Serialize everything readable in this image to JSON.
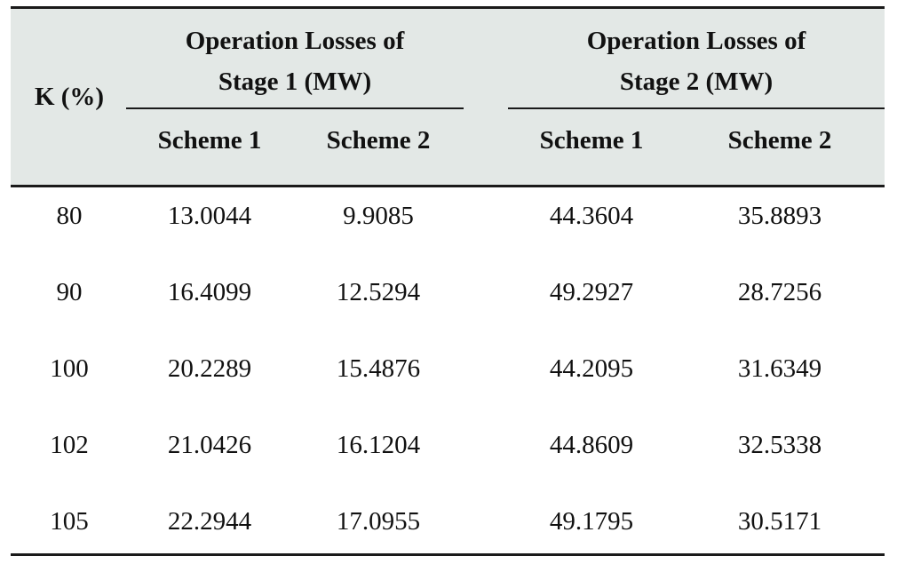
{
  "table": {
    "header": {
      "k_label": "K (%)",
      "group1_line1": "Operation Losses of",
      "group1_line2": "Stage 1 (MW)",
      "group2_line1": "Operation Losses of",
      "group2_line2": "Stage 2 (MW)",
      "sub_columns": [
        "Scheme 1",
        "Scheme 2",
        "Scheme 1",
        "Scheme 2"
      ]
    },
    "rows": [
      [
        "80",
        "13.0044",
        "9.9085",
        "44.3604",
        "35.8893"
      ],
      [
        "90",
        "16.4099",
        "12.5294",
        "49.2927",
        "28.7256"
      ],
      [
        "100",
        "20.2289",
        "15.4876",
        "44.2095",
        "31.6349"
      ],
      [
        "102",
        "21.0426",
        "16.1204",
        "44.8609",
        "32.5338"
      ],
      [
        "105",
        "22.2944",
        "17.0955",
        "49.1795",
        "30.5171"
      ]
    ],
    "colors": {
      "header_background": "#e3e8e6",
      "rule": "#1a1a1a",
      "text": "#111111"
    }
  }
}
